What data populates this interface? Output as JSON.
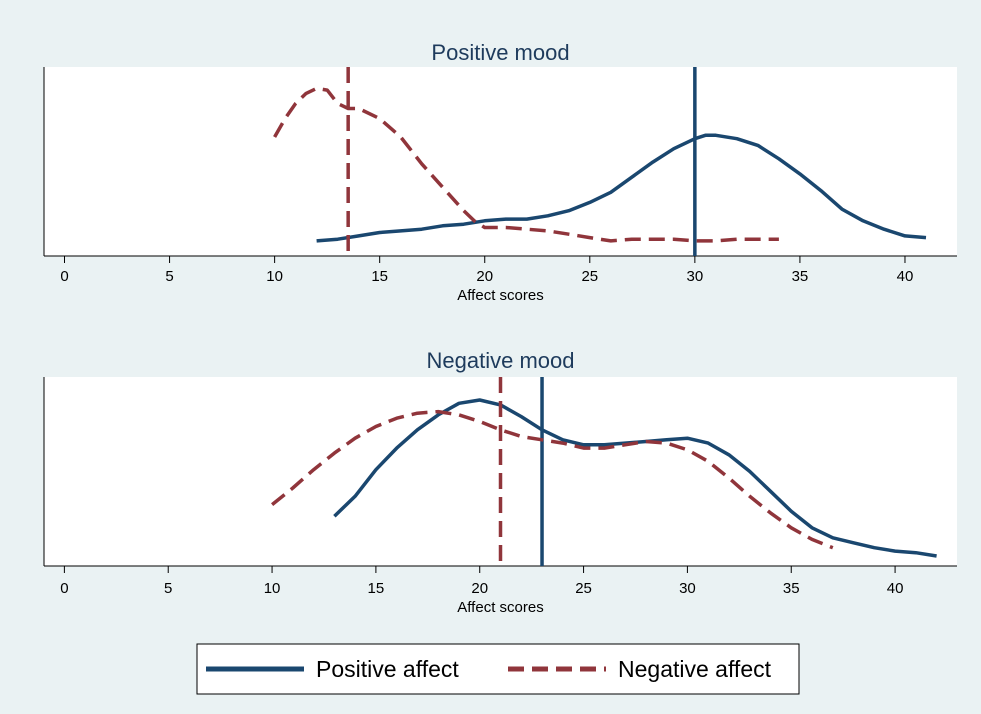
{
  "colors": {
    "background": "#eaf2f3",
    "plot_background": "#ffffff",
    "positive": "#1a476f",
    "negative": "#90353b"
  },
  "legend": {
    "items": [
      {
        "label": "Positive affect",
        "color": "#1a476f",
        "style": "solid"
      },
      {
        "label": "Negative affect",
        "color": "#90353b",
        "style": "dashed"
      }
    ],
    "placement": "bottom"
  },
  "chart_data": [
    {
      "type": "line",
      "title": "Positive mood",
      "xlabel": "Affect scores",
      "ylabel": "",
      "xlim": [
        -0.5,
        42
      ],
      "xticks": [
        0,
        5,
        10,
        15,
        20,
        25,
        30,
        35,
        40
      ],
      "ylim": [
        0,
        1.05
      ],
      "grid": false,
      "series": [
        {
          "name": "Positive affect",
          "color": "#1a476f",
          "style": "solid",
          "points": [
            [
              12,
              0.09
            ],
            [
              13,
              0.1
            ],
            [
              14,
              0.12
            ],
            [
              15,
              0.14
            ],
            [
              16,
              0.15
            ],
            [
              17,
              0.16
            ],
            [
              18,
              0.18
            ],
            [
              19,
              0.19
            ],
            [
              20,
              0.21
            ],
            [
              21,
              0.22
            ],
            [
              22,
              0.22
            ],
            [
              23,
              0.24
            ],
            [
              24,
              0.27
            ],
            [
              25,
              0.32
            ],
            [
              26,
              0.38
            ],
            [
              27,
              0.47
            ],
            [
              28,
              0.56
            ],
            [
              29,
              0.64
            ],
            [
              30,
              0.7
            ],
            [
              30.5,
              0.72
            ],
            [
              31,
              0.72
            ],
            [
              32,
              0.7
            ],
            [
              33,
              0.66
            ],
            [
              34,
              0.58
            ],
            [
              35,
              0.49
            ],
            [
              36,
              0.39
            ],
            [
              37,
              0.28
            ],
            [
              38,
              0.21
            ],
            [
              39,
              0.16
            ],
            [
              40,
              0.12
            ],
            [
              41,
              0.11
            ]
          ],
          "vline": 30
        },
        {
          "name": "Negative affect",
          "color": "#90353b",
          "style": "dashed",
          "points": [
            [
              10,
              0.71
            ],
            [
              10.5,
              0.82
            ],
            [
              11,
              0.91
            ],
            [
              11.5,
              0.97
            ],
            [
              12,
              1.0
            ],
            [
              12.5,
              0.99
            ],
            [
              13,
              0.91
            ],
            [
              13.5,
              0.88
            ],
            [
              14,
              0.88
            ],
            [
              15,
              0.82
            ],
            [
              16,
              0.71
            ],
            [
              17,
              0.55
            ],
            [
              18,
              0.41
            ],
            [
              19,
              0.27
            ],
            [
              19.5,
              0.21
            ],
            [
              20,
              0.17
            ],
            [
              21,
              0.17
            ],
            [
              22,
              0.16
            ],
            [
              23,
              0.15
            ],
            [
              24,
              0.13
            ],
            [
              25,
              0.11
            ],
            [
              26,
              0.09
            ],
            [
              27,
              0.1
            ],
            [
              28,
              0.1
            ],
            [
              29,
              0.1
            ],
            [
              30,
              0.09
            ],
            [
              31,
              0.09
            ],
            [
              32,
              0.1
            ],
            [
              33,
              0.1
            ],
            [
              34,
              0.1
            ]
          ],
          "vline": 13.5
        }
      ]
    },
    {
      "type": "line",
      "title": "Negative mood",
      "xlabel": "Affect scores",
      "ylabel": "",
      "xlim": [
        -0.5,
        42.5
      ],
      "xticks": [
        0,
        5,
        10,
        15,
        20,
        25,
        30,
        35,
        40
      ],
      "ylim": [
        0,
        1.06
      ],
      "grid": false,
      "series": [
        {
          "name": "Positive affect",
          "color": "#1a476f",
          "style": "solid",
          "points": [
            [
              13,
              0.3
            ],
            [
              14,
              0.42
            ],
            [
              15,
              0.58
            ],
            [
              16,
              0.71
            ],
            [
              17,
              0.82
            ],
            [
              18,
              0.91
            ],
            [
              19,
              0.98
            ],
            [
              20,
              1.0
            ],
            [
              21,
              0.97
            ],
            [
              22,
              0.9
            ],
            [
              23,
              0.82
            ],
            [
              24,
              0.76
            ],
            [
              25,
              0.73
            ],
            [
              26,
              0.73
            ],
            [
              27,
              0.74
            ],
            [
              28,
              0.75
            ],
            [
              29,
              0.76
            ],
            [
              30,
              0.77
            ],
            [
              31,
              0.74
            ],
            [
              32,
              0.67
            ],
            [
              33,
              0.57
            ],
            [
              34,
              0.45
            ],
            [
              35,
              0.33
            ],
            [
              36,
              0.23
            ],
            [
              37,
              0.17
            ],
            [
              38,
              0.14
            ],
            [
              39,
              0.11
            ],
            [
              40,
              0.09
            ],
            [
              41,
              0.08
            ],
            [
              42,
              0.06
            ]
          ],
          "vline": 23
        },
        {
          "name": "Negative affect",
          "color": "#90353b",
          "style": "dashed",
          "points": [
            [
              10,
              0.37
            ],
            [
              11,
              0.47
            ],
            [
              12,
              0.58
            ],
            [
              13,
              0.68
            ],
            [
              14,
              0.77
            ],
            [
              15,
              0.84
            ],
            [
              16,
              0.89
            ],
            [
              17,
              0.92
            ],
            [
              18,
              0.93
            ],
            [
              19,
              0.91
            ],
            [
              20,
              0.87
            ],
            [
              21,
              0.82
            ],
            [
              22,
              0.78
            ],
            [
              23,
              0.76
            ],
            [
              24,
              0.74
            ],
            [
              25,
              0.71
            ],
            [
              26,
              0.71
            ],
            [
              27,
              0.73
            ],
            [
              28,
              0.75
            ],
            [
              29,
              0.74
            ],
            [
              30,
              0.7
            ],
            [
              31,
              0.63
            ],
            [
              32,
              0.53
            ],
            [
              33,
              0.42
            ],
            [
              34,
              0.32
            ],
            [
              35,
              0.23
            ],
            [
              36,
              0.16
            ],
            [
              37,
              0.11
            ]
          ],
          "vline": 21
        }
      ]
    }
  ]
}
